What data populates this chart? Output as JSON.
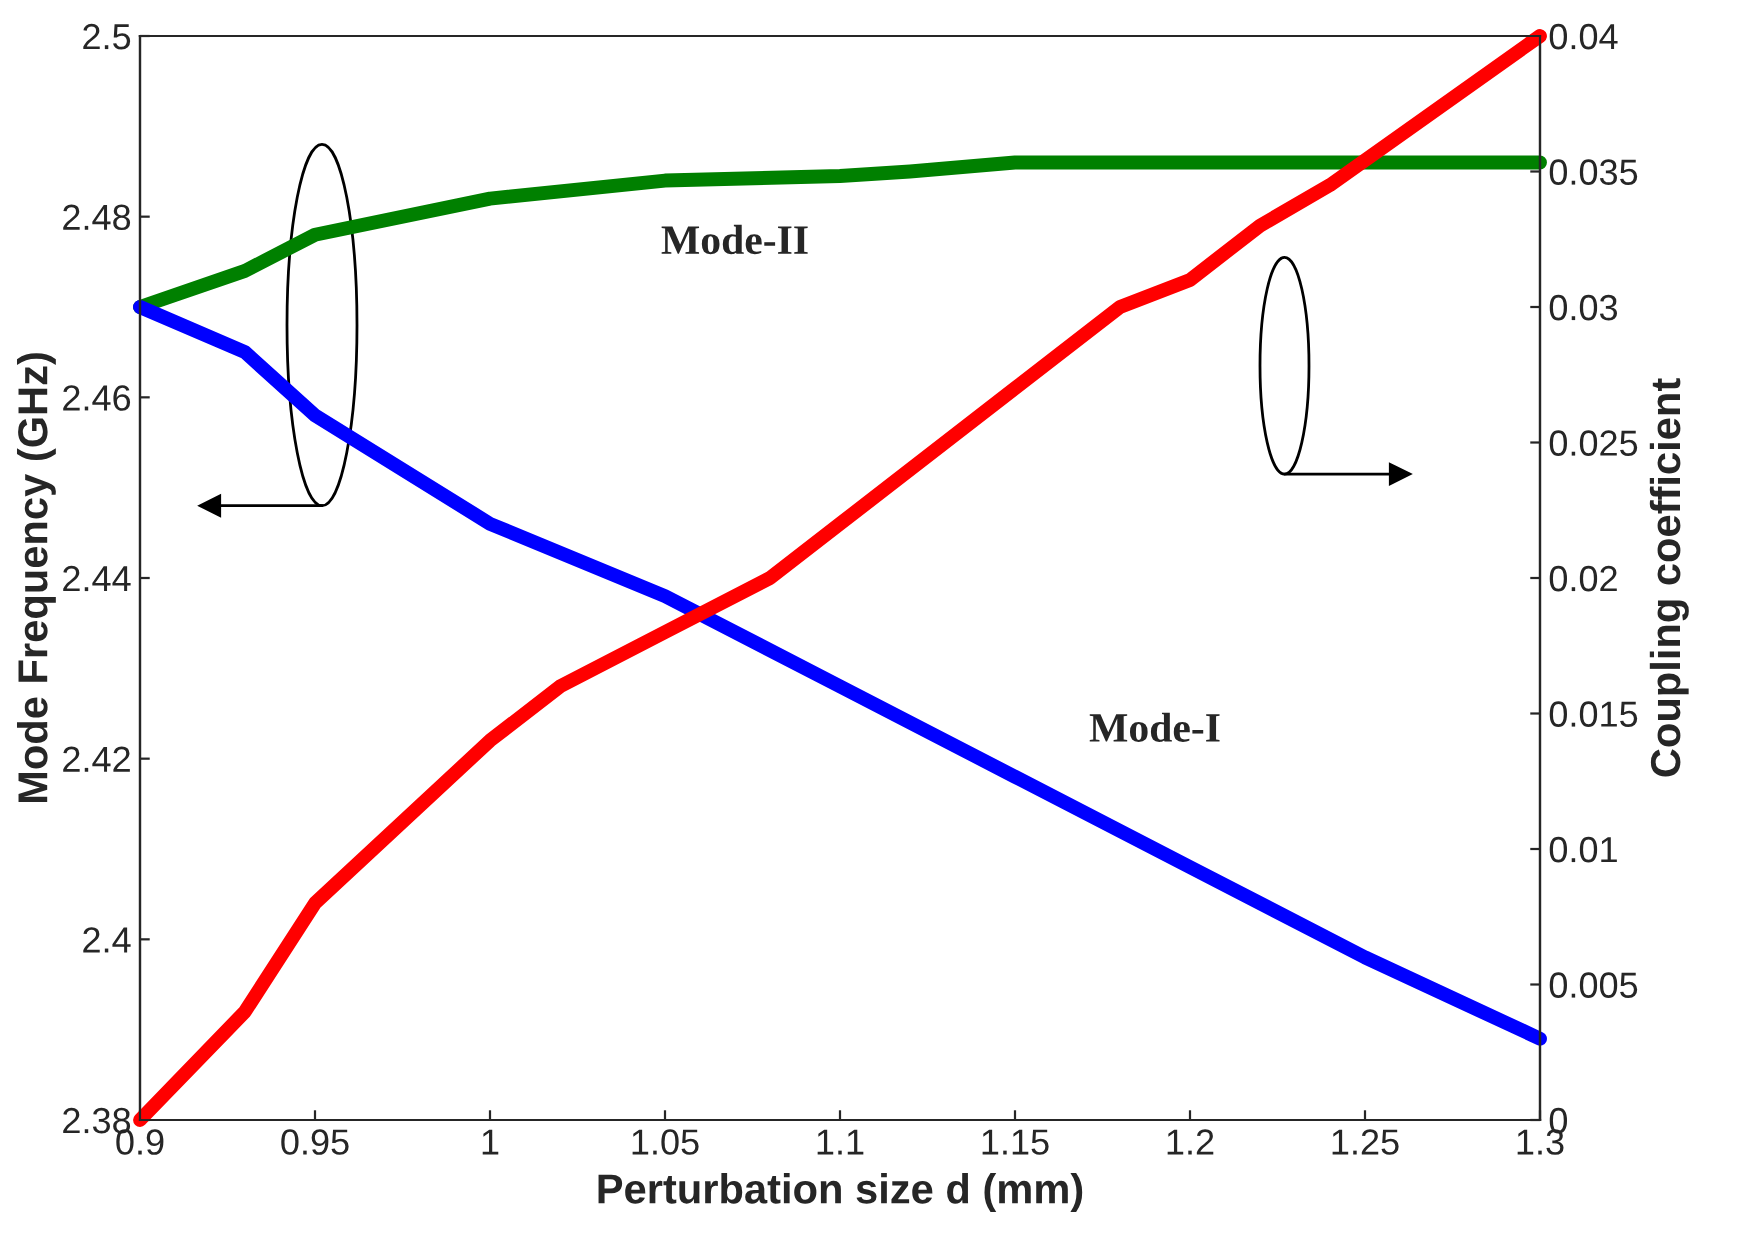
{
  "chart_data": {
    "type": "line",
    "xlabel": "Perturbation size d (mm)",
    "ylabel": "Mode Frequency (GHz)",
    "y2label": "Coupling coefficient",
    "xlim": [
      0.9,
      1.3
    ],
    "xticks": [
      0.9,
      0.95,
      1,
      1.05,
      1.1,
      1.15,
      1.2,
      1.25,
      1.3
    ],
    "ylim": [
      2.38,
      2.5
    ],
    "yticks": [
      2.38,
      2.4,
      2.42,
      2.44,
      2.46,
      2.48,
      2.5
    ],
    "y2lim": [
      0,
      0.04
    ],
    "y2ticks": [
      0,
      0.005,
      0.01,
      0.015,
      0.02,
      0.025,
      0.03,
      0.035,
      0.04
    ],
    "grid": false,
    "series": [
      {
        "name": "Mode-II",
        "color": "#008000",
        "x": [
          0.9,
          0.93,
          0.95,
          1.0,
          1.05,
          1.1,
          1.12,
          1.15,
          1.3
        ],
        "values": [
          2.47,
          2.474,
          2.478,
          2.482,
          2.484,
          2.4845,
          2.485,
          2.486,
          2.486
        ]
      },
      {
        "name": "Mode-I",
        "color": "#0000ff",
        "x": [
          0.9,
          0.93,
          0.95,
          1.0,
          1.05,
          1.1,
          1.15,
          1.2,
          1.25,
          1.3
        ],
        "values": [
          2.47,
          2.465,
          2.458,
          2.446,
          2.438,
          2.428,
          2.418,
          2.408,
          2.398,
          2.389
        ]
      },
      {
        "color": "#ff0000",
        "axis": "y2",
        "x": [
          0.9,
          0.93,
          0.95,
          1.0,
          1.02,
          1.05,
          1.08,
          1.1,
          1.15,
          1.18,
          1.2,
          1.22,
          1.24,
          1.3
        ],
        "values": [
          0,
          0.004,
          0.008,
          0.014,
          0.016,
          0.018,
          0.02,
          0.022,
          0.027,
          0.03,
          0.031,
          0.033,
          0.0345,
          0.04
        ]
      }
    ]
  }
}
